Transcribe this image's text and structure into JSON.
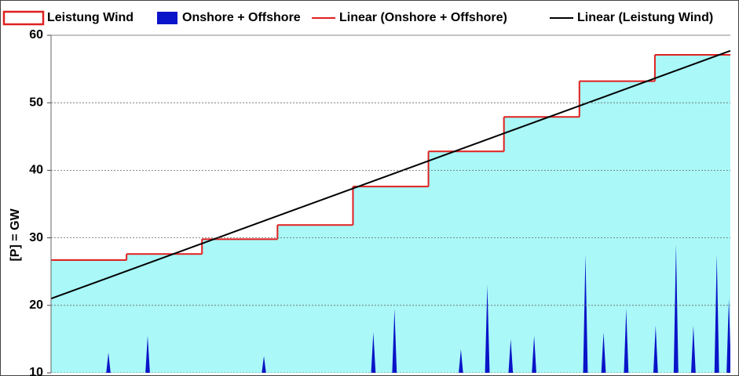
{
  "chart_data": {
    "type": "combo",
    "y_label": "[P]  = GW",
    "ylim": [
      10,
      60
    ],
    "yticks": [
      10,
      20,
      30,
      40,
      50,
      60
    ],
    "grid": true,
    "xlim": [
      0,
      9
    ],
    "series": [
      {
        "name": "Leistung Wind",
        "kind": "step-area",
        "color": "#aaf8f8",
        "edgecolor": "#e02020",
        "x": [
          0,
          1,
          2,
          3,
          4,
          5,
          6,
          7,
          8
        ],
        "values": [
          26.7,
          27.6,
          29.8,
          31.9,
          37.6,
          42.8,
          47.9,
          53.2,
          57.1
        ]
      },
      {
        "name": "Onshore + Offshore",
        "kind": "spikes",
        "color": "#0a14c8",
        "x": [
          0.76,
          1.28,
          2.82,
          4.27,
          4.55,
          5.43,
          5.78,
          6.09,
          6.4,
          7.08,
          7.32,
          7.62,
          8.01,
          8.28,
          8.51,
          8.82,
          8.98
        ],
        "values": [
          13,
          15.5,
          12.5,
          16,
          19.5,
          13.5,
          23,
          15,
          15.5,
          27.5,
          16,
          19.5,
          17,
          29,
          17,
          27.5,
          21
        ]
      },
      {
        "name": "Linear (Onshore + Offshore)",
        "kind": "step-line",
        "color": "#e02020",
        "x": [
          0,
          1,
          2,
          3,
          4,
          5,
          6,
          7,
          8
        ],
        "values": [
          26.7,
          27.6,
          29.8,
          31.9,
          37.6,
          42.8,
          47.9,
          53.2,
          57.1
        ]
      },
      {
        "name": "Linear (Leistung Wind)",
        "kind": "line",
        "color": "#000000",
        "x": [
          0,
          9
        ],
        "values": [
          21.0,
          57.7
        ]
      }
    ]
  }
}
